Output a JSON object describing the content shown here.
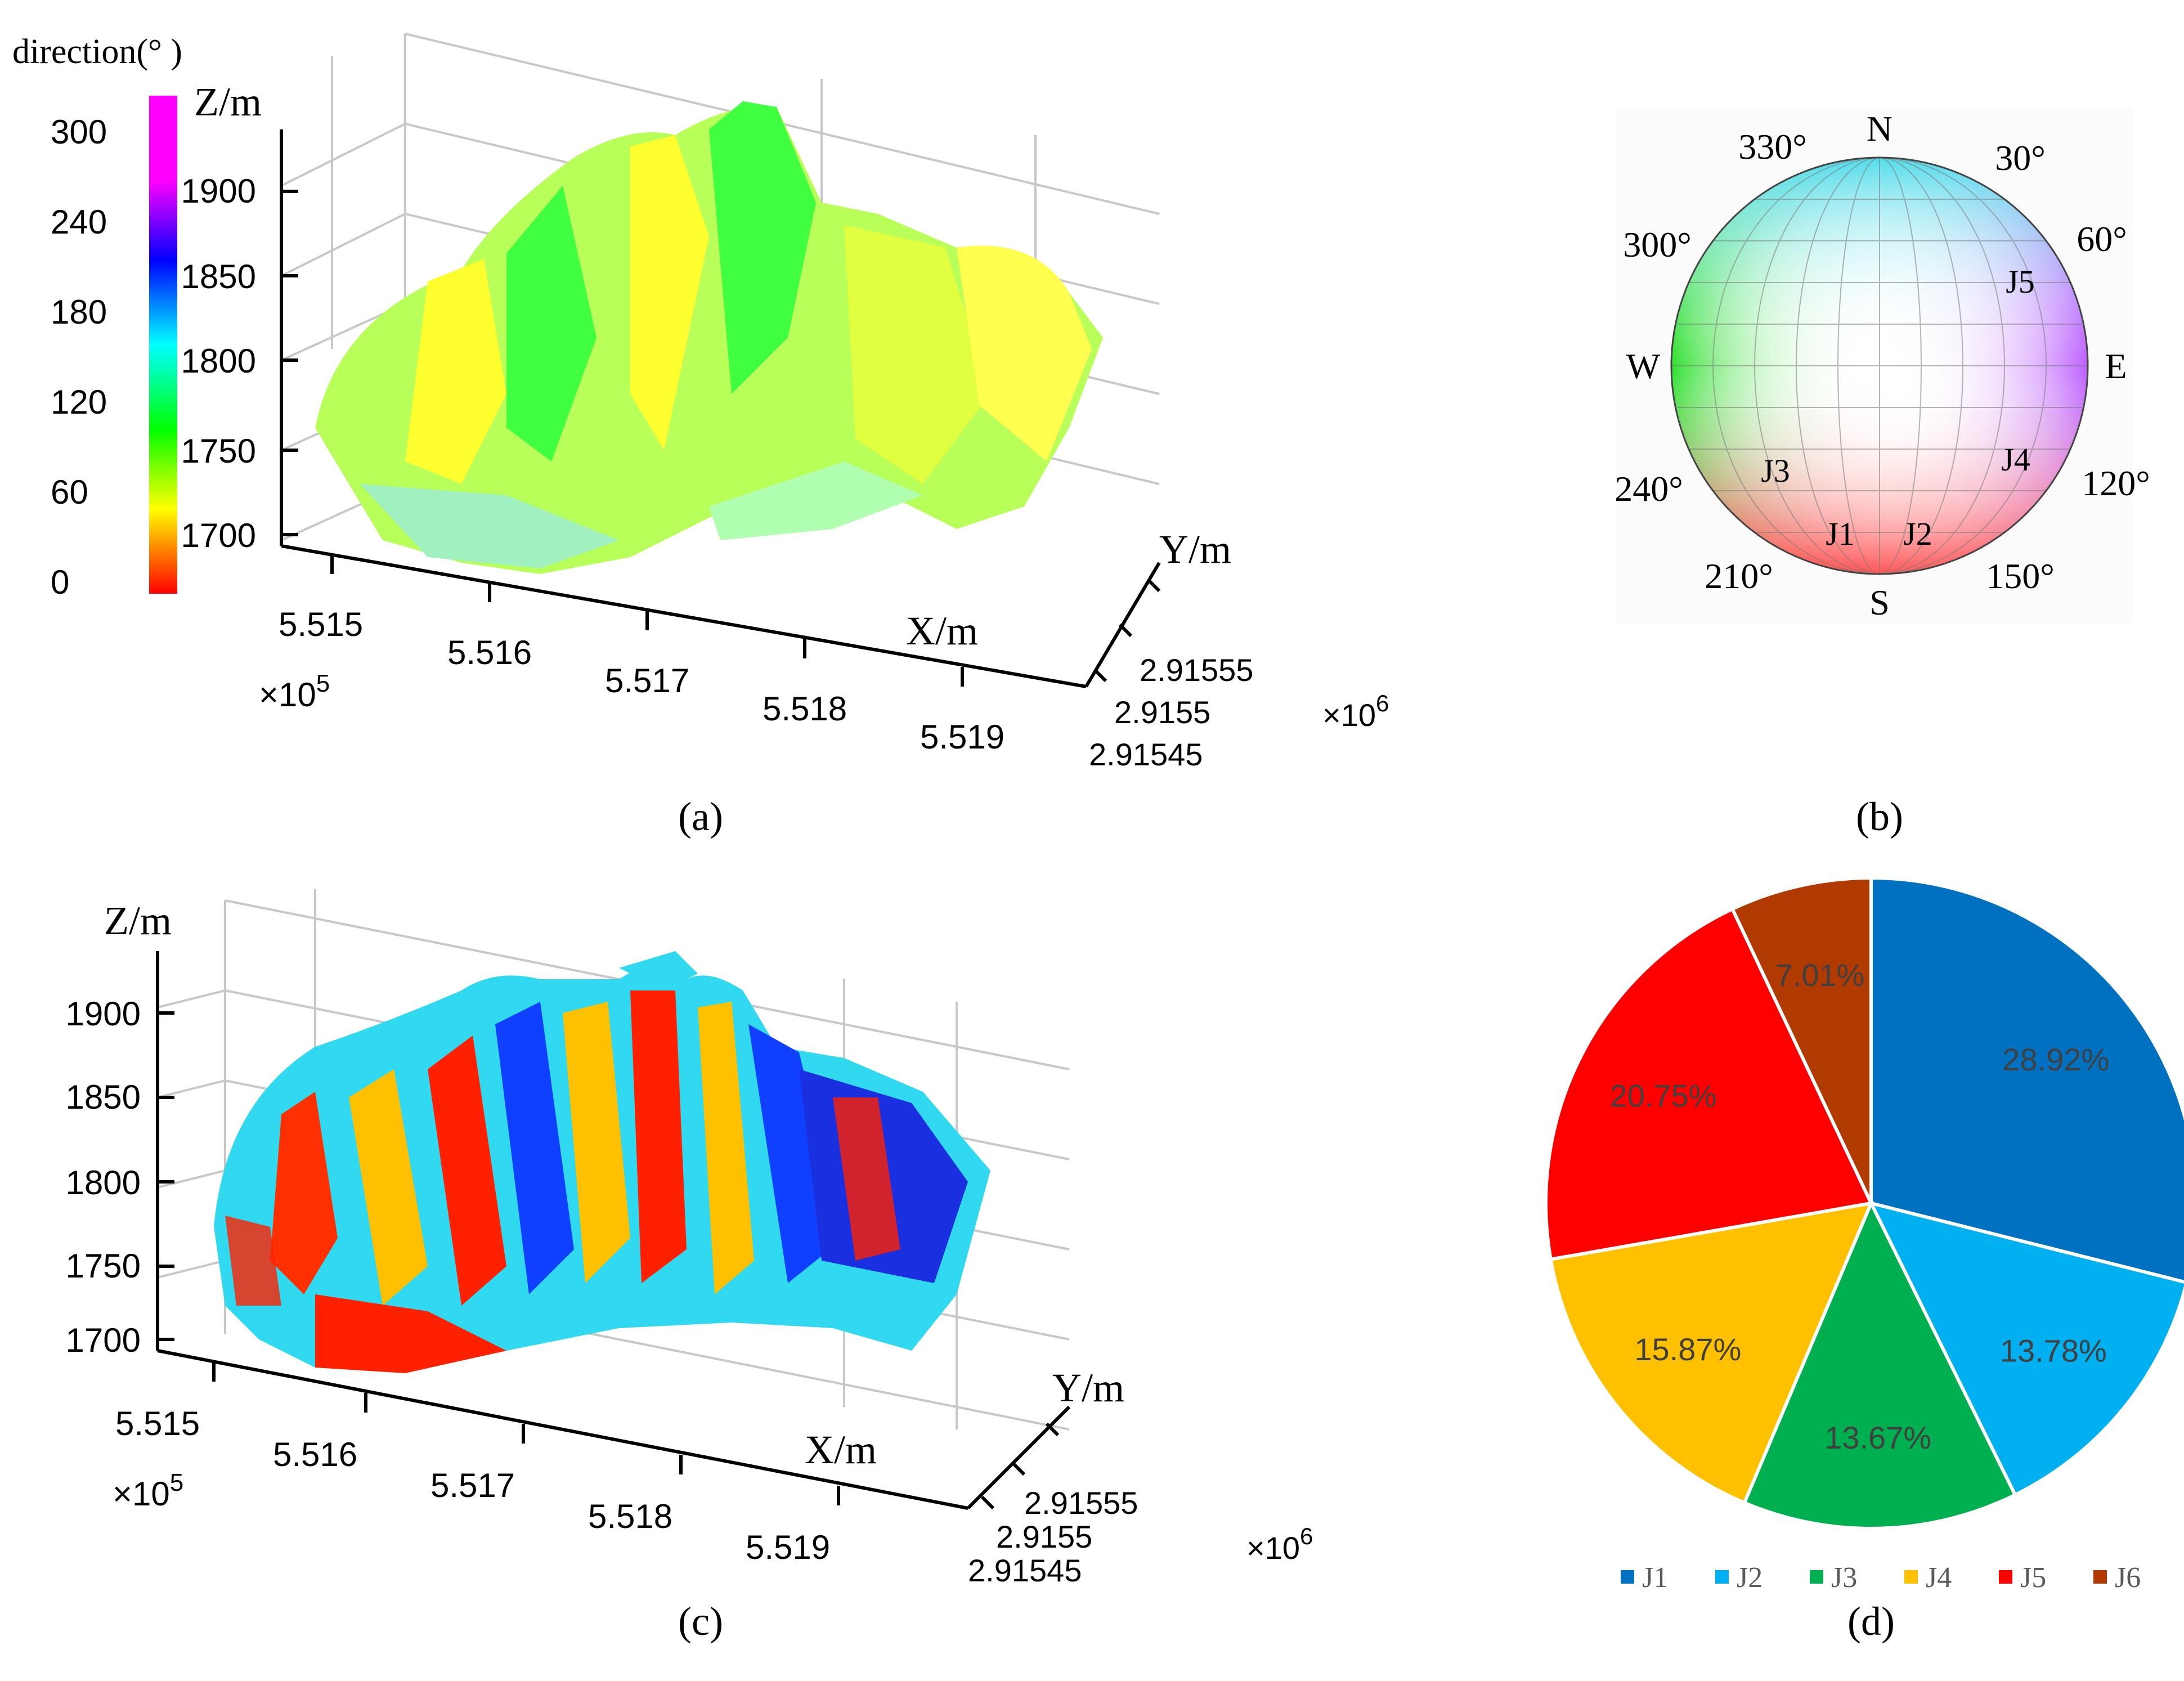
{
  "panel_labels": {
    "a": "(a)",
    "b": "(b)",
    "c": "(c)",
    "d": "(d)"
  },
  "panel_a": {
    "colorbar_title": "direction(° )",
    "colorbar_ticks": [
      "300",
      "240",
      "180",
      "120",
      "60",
      "0"
    ],
    "z_label": "Z/m",
    "z_ticks": [
      "1900",
      "1850",
      "1800",
      "1750",
      "1700"
    ],
    "x_label": "X/m",
    "x_ticks": [
      "5.515",
      "5.516",
      "5.517",
      "5.518",
      "5.519"
    ],
    "x_scale_base": "×10",
    "x_scale_exp": "5",
    "y_label": "Y/m",
    "y_ticks": [
      "2.91555",
      "2.9155",
      "2.91545"
    ],
    "y_scale_base": "×10",
    "y_scale_exp": "6",
    "colors": [
      "#ff0000",
      "#ff8000",
      "#ffff00",
      "#00ff00",
      "#00ffff",
      "#0000ff",
      "#ff00ff"
    ]
  },
  "panel_b": {
    "compass": {
      "N": "N",
      "S": "S",
      "E": "E",
      "W": "W",
      "deg_330": "330°",
      "deg_30": "30°",
      "deg_300": "300°",
      "deg_60": "60°",
      "deg_240": "240°",
      "deg_120": "120°",
      "deg_210": "210°",
      "deg_150": "150°"
    },
    "sets": {
      "J1": "J1",
      "J2": "J2",
      "J3": "J3",
      "J4": "J4",
      "J5": "J5"
    }
  },
  "panel_c": {
    "z_label": "Z/m",
    "z_ticks": [
      "1900",
      "1850",
      "1800",
      "1750",
      "1700"
    ],
    "x_label": "X/m",
    "x_ticks": [
      "5.515",
      "5.516",
      "5.517",
      "5.518",
      "5.519"
    ],
    "x_scale_base": "×10",
    "x_scale_exp": "5",
    "y_label": "Y/m",
    "y_ticks": [
      "2.91555",
      "2.9155",
      "2.91545"
    ],
    "y_scale_base": "×10",
    "y_scale_exp": "6",
    "colors": [
      "#0070c0",
      "#00b0f0",
      "#00b050",
      "#ffc000",
      "#ff0000",
      "#b03a00"
    ]
  },
  "chart_data": [
    {
      "type": "pie",
      "categories": [
        "J1",
        "J2",
        "J3",
        "J4",
        "J5",
        "J6"
      ],
      "values": [
        28.92,
        13.78,
        13.67,
        15.87,
        20.75,
        7.01
      ],
      "data_labels": [
        "28.92%",
        "13.78%",
        "13.67%",
        "15.87%",
        "20.75%",
        "7.01%"
      ],
      "colors": [
        "#0070c0",
        "#00b0f0",
        "#00b050",
        "#ffc000",
        "#ff0000",
        "#b03a00"
      ],
      "legend": "bottom",
      "start_angle_deg": 0,
      "direction": "clockwise"
    }
  ]
}
